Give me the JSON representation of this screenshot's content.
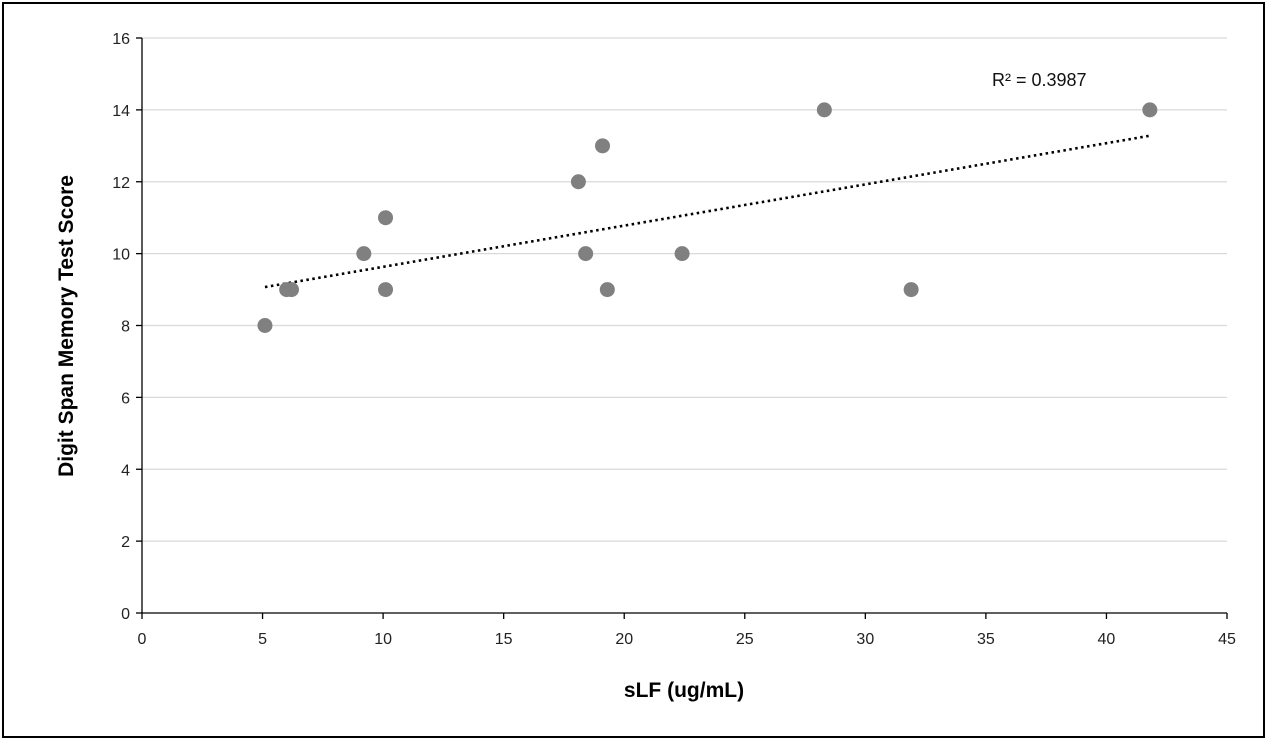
{
  "chart_data": {
    "type": "scatter",
    "title": "",
    "xlabel": "sLF (ug/mL)",
    "ylabel": "Digit Span Memory Test Score",
    "xlim": [
      0,
      45
    ],
    "ylim": [
      0,
      16
    ],
    "x_ticks": [
      0,
      5,
      10,
      15,
      20,
      25,
      30,
      35,
      40,
      45
    ],
    "y_ticks": [
      0,
      2,
      4,
      6,
      8,
      10,
      12,
      14,
      16
    ],
    "grid": "horizontal",
    "marker_color": "#808080",
    "series": [
      {
        "points": [
          {
            "x": 5.1,
            "y": 8
          },
          {
            "x": 6.0,
            "y": 9
          },
          {
            "x": 6.2,
            "y": 9
          },
          {
            "x": 9.2,
            "y": 10
          },
          {
            "x": 10.1,
            "y": 11
          },
          {
            "x": 10.1,
            "y": 9
          },
          {
            "x": 18.1,
            "y": 12
          },
          {
            "x": 18.4,
            "y": 10
          },
          {
            "x": 19.1,
            "y": 13
          },
          {
            "x": 19.3,
            "y": 9
          },
          {
            "x": 22.4,
            "y": 10
          },
          {
            "x": 28.3,
            "y": 14
          },
          {
            "x": 31.9,
            "y": 9
          },
          {
            "x": 41.8,
            "y": 14
          }
        ]
      }
    ],
    "trendline": {
      "type": "linear",
      "style": "dotted",
      "x_range": [
        5.1,
        41.8
      ],
      "y_values": [
        9.07,
        13.28
      ],
      "r_squared_label": "R² = 0.3987"
    }
  }
}
